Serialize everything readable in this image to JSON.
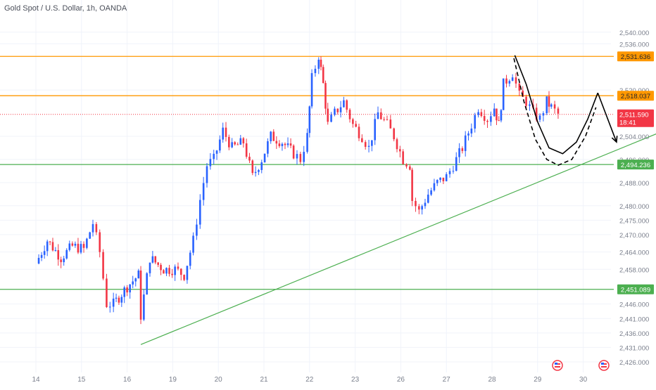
{
  "header": {
    "title": "Gold Spot / U.S. Dollar, 1h, OANDA"
  },
  "colors": {
    "bull": "#2962ff",
    "bear": "#f23645",
    "grid": "#f0f3fa",
    "orange_level": "#ff9800",
    "green_level": "#4caf50",
    "trendline": "#4caf50",
    "current_price_line": "#f23645",
    "axis_text": "#7a7f8c",
    "projection": "#000000"
  },
  "chart_data": {
    "type": "candlestick",
    "title": "Gold Spot / U.S. Dollar, 1h, OANDA",
    "xlabel": "",
    "ylabel": "",
    "ylim": [
      2423.5,
      2547
    ],
    "grid": true,
    "x_tick_labels": [
      "14",
      "15",
      "16",
      "19",
      "20",
      "21",
      "22",
      "23",
      "26",
      "27",
      "28",
      "29",
      "30"
    ],
    "y_tick_labels": [
      "2,540.000",
      "2,536.000",
      "2,520.000",
      "2,504.000",
      "2,496.000",
      "2,488.000",
      "2,480.000",
      "2,475.000",
      "2,470.000",
      "2,464.000",
      "2,458.000",
      "2,446.000",
      "2,441.000",
      "2,436.000",
      "2,431.000",
      "2,426.000"
    ],
    "levels": [
      {
        "label": "2,531.636",
        "value": 2531.636,
        "color": "orange"
      },
      {
        "label": "2,518.037",
        "value": 2518.037,
        "color": "orange"
      },
      {
        "label": "2,494.236",
        "value": 2494.236,
        "color": "green"
      },
      {
        "label": "2,451.089",
        "value": 2451.089,
        "color": "green"
      }
    ],
    "current_price": {
      "label": "2,511.590",
      "value": 2511.59,
      "countdown": "18:41"
    },
    "trendline": {
      "from": {
        "x": 15.6,
        "y": 2432
      },
      "to": {
        "x": 28.72,
        "y": 2514
      }
    },
    "price_path": [
      {
        "x": 13.3,
        "y": 2460
      },
      {
        "x": 13.55,
        "y": 2468
      },
      {
        "x": 13.85,
        "y": 2462
      },
      {
        "x": 14.1,
        "y": 2466
      },
      {
        "x": 14.35,
        "y": 2465
      },
      {
        "x": 14.55,
        "y": 2474
      },
      {
        "x": 14.7,
        "y": 2464
      },
      {
        "x": 14.85,
        "y": 2446
      },
      {
        "x": 15.0,
        "y": 2446
      },
      {
        "x": 15.3,
        "y": 2452
      },
      {
        "x": 15.55,
        "y": 2456
      },
      {
        "x": 15.6,
        "y": 2442
      },
      {
        "x": 15.8,
        "y": 2462
      },
      {
        "x": 16.1,
        "y": 2458
      },
      {
        "x": 16.35,
        "y": 2458
      },
      {
        "x": 16.55,
        "y": 2456
      },
      {
        "x": 16.75,
        "y": 2468
      },
      {
        "x": 16.9,
        "y": 2482
      },
      {
        "x": 17.05,
        "y": 2494
      },
      {
        "x": 17.2,
        "y": 2496
      },
      {
        "x": 17.4,
        "y": 2506
      },
      {
        "x": 17.6,
        "y": 2500
      },
      {
        "x": 17.85,
        "y": 2502
      },
      {
        "x": 18.05,
        "y": 2490
      },
      {
        "x": 18.25,
        "y": 2496
      },
      {
        "x": 18.45,
        "y": 2504
      },
      {
        "x": 18.7,
        "y": 2502
      },
      {
        "x": 18.95,
        "y": 2498
      },
      {
        "x": 19.1,
        "y": 2496
      },
      {
        "x": 19.25,
        "y": 2504
      },
      {
        "x": 19.35,
        "y": 2524
      },
      {
        "x": 19.5,
        "y": 2532
      },
      {
        "x": 19.6,
        "y": 2522
      },
      {
        "x": 19.7,
        "y": 2508
      },
      {
        "x": 19.85,
        "y": 2512
      },
      {
        "x": 20.05,
        "y": 2516
      },
      {
        "x": 20.25,
        "y": 2508
      },
      {
        "x": 20.45,
        "y": 2504
      },
      {
        "x": 20.6,
        "y": 2500
      },
      {
        "x": 20.8,
        "y": 2512
      },
      {
        "x": 21.0,
        "y": 2508
      },
      {
        "x": 21.15,
        "y": 2504
      },
      {
        "x": 21.35,
        "y": 2496
      },
      {
        "x": 21.5,
        "y": 2494
      },
      {
        "x": 21.55,
        "y": 2482
      },
      {
        "x": 21.7,
        "y": 2478
      },
      {
        "x": 21.9,
        "y": 2484
      },
      {
        "x": 22.1,
        "y": 2488
      },
      {
        "x": 22.3,
        "y": 2490
      },
      {
        "x": 22.45,
        "y": 2494
      },
      {
        "x": 22.65,
        "y": 2500
      },
      {
        "x": 22.85,
        "y": 2508
      },
      {
        "x": 23.0,
        "y": 2514
      },
      {
        "x": 23.2,
        "y": 2510
      },
      {
        "x": 23.35,
        "y": 2514
      },
      {
        "x": 23.45,
        "y": 2508
      },
      {
        "x": 23.55,
        "y": 2522
      },
      {
        "x": 23.75,
        "y": 2526
      },
      {
        "x": 23.9,
        "y": 2518
      },
      {
        "x": 24.05,
        "y": 2516
      },
      {
        "x": 24.2,
        "y": 2512
      },
      {
        "x": 24.35,
        "y": 2510
      },
      {
        "x": 24.5,
        "y": 2516
      },
      {
        "x": 24.6,
        "y": 2514
      },
      {
        "x": 24.75,
        "y": 2511.59
      }
    ],
    "projection": {
      "solid_curve": [
        {
          "x": 24.05,
          "y": 2522
        },
        {
          "x": 24.3,
          "y": 2509
        },
        {
          "x": 24.55,
          "y": 2500
        },
        {
          "x": 24.85,
          "y": 2498
        },
        {
          "x": 25.15,
          "y": 2502
        },
        {
          "x": 25.4,
          "y": 2510
        },
        {
          "x": 25.62,
          "y": 2519
        }
      ],
      "dashed_curve": [
        {
          "x": 23.78,
          "y": 2531
        },
        {
          "x": 24.0,
          "y": 2516
        },
        {
          "x": 24.25,
          "y": 2503
        },
        {
          "x": 24.5,
          "y": 2496
        },
        {
          "x": 24.75,
          "y": 2494
        },
        {
          "x": 25.05,
          "y": 2496
        },
        {
          "x": 25.35,
          "y": 2504
        },
        {
          "x": 25.58,
          "y": 2514
        }
      ],
      "solid_down_arrow": {
        "from": {
          "x": 23.8,
          "y": 2532
        },
        "to": {
          "x": 24.05,
          "y": 2522
        }
      },
      "arrow_down": {
        "from": {
          "x": 25.62,
          "y": 2519
        },
        "to": {
          "x": 26.03,
          "y": 2502
        }
      }
    }
  },
  "axis": {
    "x_positions": [
      13.3,
      14.3,
      15.3,
      16.3,
      17.3,
      18.3,
      19.3,
      20.3,
      21.3,
      22.3,
      23.3,
      24.3,
      25.3,
      26.3
    ],
    "note_flags": [
      "flag-icon-us",
      "flag-icon-us"
    ]
  }
}
